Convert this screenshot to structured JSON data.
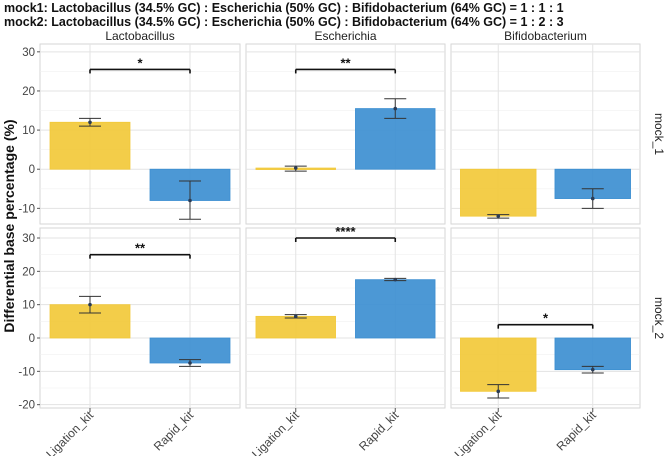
{
  "chart_data": {
    "type": "bar",
    "title_lines": [
      "mock1: Lactobacillus (34.5% GC) : Escherichia (50% GC) : Bifidobacterium (64% GC) = 1 : 1 : 1",
      "mock2: Lactobacillus (34.5% GC) : Escherichia (50% GC) : Bifidobacterium (64% GC) = 1 : 2 : 3"
    ],
    "ylabel": "Differential base percentage (%)",
    "categories": [
      "Ligation_kit",
      "Rapid_kit"
    ],
    "columns": [
      "Lactobacillus",
      "Escherichia",
      "Bifidobacterium"
    ],
    "rows": [
      "mock_1",
      "mock_2"
    ],
    "row_ylims": [
      [
        -14,
        32
      ],
      [
        -21,
        33
      ]
    ],
    "row_ticks": [
      [
        -10,
        0,
        10,
        20,
        30
      ],
      [
        -20,
        -10,
        0,
        10,
        20,
        30
      ]
    ],
    "colors": {
      "Ligation_kit": "#F2C93A",
      "Rapid_kit": "#3D8FD1"
    },
    "panels": [
      {
        "row": 0,
        "col": 0,
        "bars": [
          {
            "kit": "Ligation_kit",
            "value": 12,
            "err_low": 11,
            "err_high": 13
          },
          {
            "kit": "Rapid_kit",
            "value": -8,
            "err_low": -12.8,
            "err_high": -3
          }
        ],
        "signif": {
          "label": "*",
          "y": 25.5
        }
      },
      {
        "row": 0,
        "col": 1,
        "bars": [
          {
            "kit": "Ligation_kit",
            "value": 0.3,
            "err_low": -0.5,
            "err_high": 0.8
          },
          {
            "kit": "Rapid_kit",
            "value": 15.5,
            "err_low": 13,
            "err_high": 18
          }
        ],
        "signif": {
          "label": "**",
          "y": 25.5
        }
      },
      {
        "row": 0,
        "col": 2,
        "bars": [
          {
            "kit": "Ligation_kit",
            "value": -12,
            "err_low": -12.5,
            "err_high": -11.6
          },
          {
            "kit": "Rapid_kit",
            "value": -7.5,
            "err_low": -10,
            "err_high": -5
          }
        ],
        "signif": null
      },
      {
        "row": 1,
        "col": 0,
        "bars": [
          {
            "kit": "Ligation_kit",
            "value": 10,
            "err_low": 7.5,
            "err_high": 12.5
          },
          {
            "kit": "Rapid_kit",
            "value": -7.5,
            "err_low": -8.5,
            "err_high": -6.5
          }
        ],
        "signif": {
          "label": "**",
          "y": 25
        }
      },
      {
        "row": 1,
        "col": 1,
        "bars": [
          {
            "kit": "Ligation_kit",
            "value": 6.5,
            "err_low": 6,
            "err_high": 7
          },
          {
            "kit": "Rapid_kit",
            "value": 17.5,
            "err_low": 17.2,
            "err_high": 17.9
          }
        ],
        "signif": {
          "label": "****",
          "y": 30
        }
      },
      {
        "row": 1,
        "col": 2,
        "bars": [
          {
            "kit": "Ligation_kit",
            "value": -16,
            "err_low": -18,
            "err_high": -14
          },
          {
            "kit": "Rapid_kit",
            "value": -9.5,
            "err_low": -10.5,
            "err_high": -8.5
          }
        ],
        "signif": {
          "label": "*",
          "y": 4
        }
      }
    ]
  }
}
